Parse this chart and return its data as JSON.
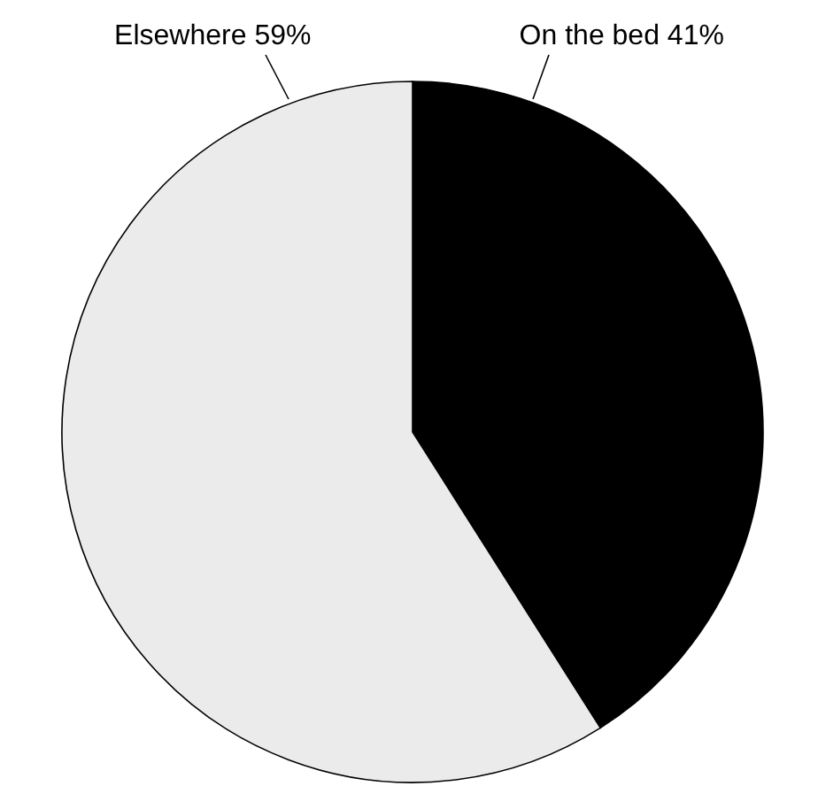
{
  "chart_data": {
    "type": "pie",
    "categories": [
      "On the bed",
      "Elsewhere"
    ],
    "values": [
      41,
      59
    ],
    "value_labels": [
      "41%",
      "59%"
    ],
    "colors": [
      "#000000",
      "#ebebeb"
    ]
  }
}
